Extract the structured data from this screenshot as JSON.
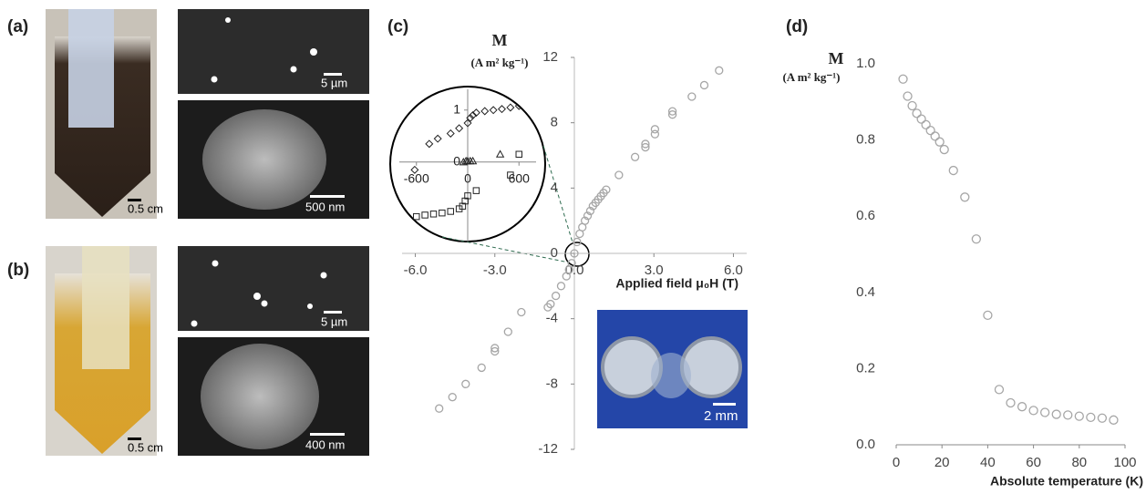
{
  "panels": [
    {
      "label": "(a)",
      "scales": [
        "0.5 cm",
        "5 µm",
        "500 nm"
      ]
    },
    {
      "label": "(b)",
      "scales": [
        "0.5 cm",
        "5 µm",
        "400 nm"
      ]
    }
  ],
  "inset_photo_scale": "2 mm",
  "chart_data": [
    {
      "type": "scatter",
      "label": "(c)",
      "ylabel": "M",
      "yunit": "(A m² kg⁻¹)",
      "xlabel": "Applied field μ₀H (T)",
      "axes": "zero",
      "grid": false,
      "xlim": [
        -6.5,
        6.5
      ],
      "ylim": [
        -12,
        12
      ],
      "xticks": [
        {
          "value": -6,
          "label": "-6.0"
        },
        {
          "value": -3,
          "label": "-3.0"
        },
        {
          "value": 0,
          "label": "0.0"
        },
        {
          "value": 3,
          "label": "3.0"
        },
        {
          "value": 6,
          "label": "6.0"
        }
      ],
      "yticks": [
        -12,
        -8,
        -4,
        0,
        4,
        8,
        12
      ],
      "series": [
        {
          "marker": "circle",
          "color": "#a6a6a6",
          "x": [
            5.46,
            4.9,
            4.43,
            3.7,
            3.7,
            3.04,
            3.04,
            2.68,
            2.68,
            2.29,
            1.68,
            1.2,
            1.1,
            1.0,
            0.9,
            0.8,
            0.7,
            0.6,
            0.5,
            0.4,
            0.3,
            0.2,
            0.1,
            0,
            -0.1,
            -0.2,
            -0.3,
            -0.5,
            -0.7,
            -0.9,
            -1.0,
            -2.0,
            -2.5,
            -3.0,
            -3.0,
            -3.5,
            -4.1,
            -4.6,
            -5.1
          ],
          "y": [
            11.2,
            10.3,
            9.6,
            8.7,
            8.5,
            7.6,
            7.3,
            6.7,
            6.5,
            5.9,
            4.8,
            3.9,
            3.7,
            3.5,
            3.3,
            3.1,
            2.9,
            2.6,
            2.3,
            2.0,
            1.6,
            1.2,
            0.7,
            0,
            -0.6,
            -1.0,
            -1.4,
            -2.0,
            -2.6,
            -3.1,
            -3.3,
            -3.6,
            -4.8,
            -5.8,
            -6.0,
            -7.0,
            -8.0,
            -8.8,
            -9.5
          ]
        }
      ]
    },
    {
      "type": "scatter",
      "axes": "zero",
      "grid": false,
      "xlim": [
        -800,
        800
      ],
      "ylim": [
        -1.6,
        1.4
      ],
      "xticks": [
        -600,
        0,
        600
      ],
      "yticks": [
        0,
        1
      ],
      "series": [
        {
          "marker": "diamond",
          "color": "#222",
          "x": [
            -620,
            -450,
            -350,
            -200,
            -100,
            0,
            30,
            60,
            100,
            200,
            300,
            400,
            500,
            600
          ],
          "y": [
            -0.15,
            0.35,
            0.45,
            0.55,
            0.65,
            0.75,
            0.85,
            0.9,
            0.95,
            0.98,
            1.0,
            1.02,
            1.05,
            1.08
          ]
        },
        {
          "marker": "triangle",
          "color": "#222",
          "x": [
            -50,
            -20,
            0,
            30,
            60,
            380
          ],
          "y": [
            0,
            0.02,
            0.02,
            0.02,
            0.02,
            0.15
          ]
        },
        {
          "marker": "square",
          "color": "#222",
          "x": [
            -600,
            -500,
            -400,
            -300,
            -200,
            -100,
            -60,
            -30,
            0,
            100,
            500,
            600
          ],
          "y": [
            -1.05,
            -1.02,
            -1.0,
            -0.98,
            -0.95,
            -0.9,
            -0.85,
            -0.75,
            -0.65,
            -0.55,
            -0.25,
            0.15
          ]
        }
      ]
    },
    {
      "type": "scatter",
      "label": "(d)",
      "ylabel": "M",
      "yunit": "(A m² kg⁻¹)",
      "xlabel": "Absolute temperature  (K)",
      "axes": "bottom",
      "grid": false,
      "xlim": [
        0,
        100
      ],
      "ylim": [
        0,
        1
      ],
      "xticks": [
        0,
        20,
        40,
        60,
        80,
        100
      ],
      "yticks": [
        {
          "value": 0,
          "label": "0.0"
        },
        0.2,
        0.4,
        0.6,
        0.8,
        {
          "value": 1,
          "label": "1.0"
        }
      ],
      "series": [
        {
          "marker": "circle",
          "color": "#a6a6a6",
          "x": [
            3,
            5,
            7,
            9,
            11,
            13,
            15,
            17,
            19,
            21,
            25,
            30,
            35,
            40,
            45,
            50,
            55,
            60,
            65,
            70,
            75,
            80,
            85,
            90,
            95
          ],
          "y": [
            0.96,
            0.915,
            0.89,
            0.87,
            0.855,
            0.84,
            0.825,
            0.81,
            0.795,
            0.775,
            0.72,
            0.65,
            0.54,
            0.34,
            0.145,
            0.11,
            0.1,
            0.09,
            0.085,
            0.08,
            0.078,
            0.075,
            0.072,
            0.07,
            0.065
          ]
        }
      ]
    }
  ]
}
